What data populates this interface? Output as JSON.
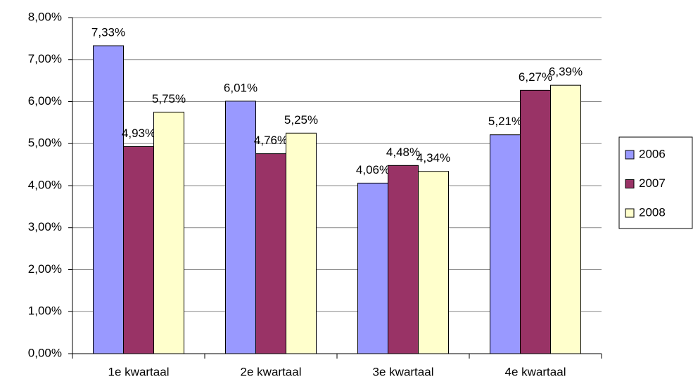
{
  "chart_data": {
    "type": "bar",
    "categories": [
      "1e kwartaal",
      "2e kwartaal",
      "3e kwartaal",
      "4e kwartaal"
    ],
    "series": [
      {
        "name": "2006",
        "color": "#9999ff",
        "values": [
          7.33,
          6.01,
          4.06,
          5.21
        ],
        "value_labels": [
          "7,33%",
          "6,01%",
          "4,06%",
          "5,21%"
        ]
      },
      {
        "name": "2007",
        "color": "#993366",
        "values": [
          4.93,
          4.76,
          4.48,
          6.27
        ],
        "value_labels": [
          "4,93%",
          "4,76%",
          "4,48%",
          "6,27%"
        ]
      },
      {
        "name": "2008",
        "color": "#ffffcc",
        "values": [
          5.75,
          5.25,
          4.34,
          6.39
        ],
        "value_labels": [
          "5,75%",
          "5,25%",
          "4,34%",
          "6,39%"
        ]
      }
    ],
    "ylim": [
      0,
      8
    ],
    "yticks": [
      {
        "value": 0,
        "label": "0,00%"
      },
      {
        "value": 1,
        "label": "1,00%"
      },
      {
        "value": 2,
        "label": "2,00%"
      },
      {
        "value": 3,
        "label": "3,00%"
      },
      {
        "value": 4,
        "label": "4,00%"
      },
      {
        "value": 5,
        "label": "5,00%"
      },
      {
        "value": 6,
        "label": "6,00%"
      },
      {
        "value": 7,
        "label": "7,00%"
      },
      {
        "value": 8,
        "label": "8,00%"
      }
    ],
    "grid": true,
    "legend": "right"
  }
}
